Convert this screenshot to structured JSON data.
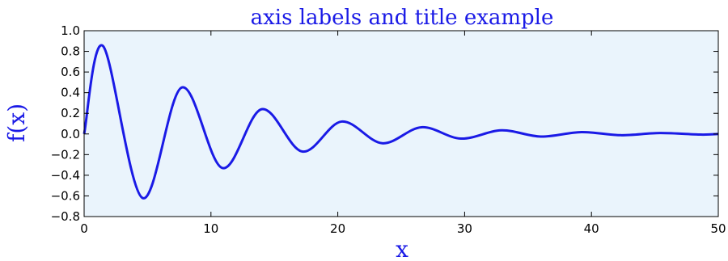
{
  "chart_data": {
    "type": "line",
    "title": "axis labels and title example",
    "xlabel": "x",
    "ylabel": "f(x)",
    "xlim": [
      0,
      50
    ],
    "ylim": [
      -0.8,
      1.0
    ],
    "grid": false,
    "x_ticks": [
      "0",
      "10",
      "20",
      "30",
      "40",
      "50"
    ],
    "y_ticks": [
      "1.0",
      "0.8",
      "0.6",
      "0.4",
      "0.2",
      "0.0",
      "−0.2",
      "−0.4",
      "−0.6",
      "−0.8"
    ],
    "series": [
      {
        "x": [
          0,
          1.5,
          4.6,
          7.7,
          10.9,
          14.0,
          17.2,
          20.3,
          23.5,
          26.6,
          29.7,
          32.9,
          36.0,
          39.2,
          42.3,
          45.4,
          48.6,
          50
        ],
        "y": [
          0,
          0.85,
          -0.62,
          0.45,
          -0.33,
          0.24,
          -0.17,
          0.12,
          -0.09,
          0.065,
          -0.045,
          0.035,
          -0.025,
          0.018,
          -0.012,
          0.009,
          -0.006,
          0
        ]
      }
    ],
    "colors": {
      "line": "#1a1ae6",
      "title": "#1a1ae6",
      "axis_labels": "#1a1ae6",
      "plot_background": "#eaf4fc"
    }
  }
}
